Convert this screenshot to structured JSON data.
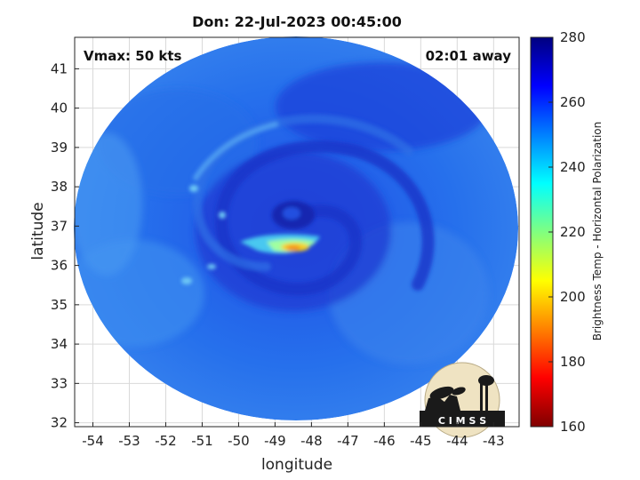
{
  "title": "Don: 22-Jul-2023 00:45:00",
  "vmax_label": "Vmax: 50 kts",
  "time_away_label": "02:01 away",
  "xlabel": "longitude",
  "ylabel": "latitude",
  "colorbar_label": "Brightness Temp - Horizontal Polarization",
  "logo_text": "C I M S S",
  "x_ticks": [
    "-54",
    "-53",
    "-52",
    "-51",
    "-50",
    "-49",
    "-48",
    "-47",
    "-46",
    "-45",
    "-44",
    "-43"
  ],
  "y_ticks": [
    "41",
    "40",
    "39",
    "38",
    "37",
    "36",
    "35",
    "34",
    "33",
    "32"
  ],
  "colorbar_ticks": [
    "280",
    "260",
    "240",
    "220",
    "200",
    "180",
    "160"
  ],
  "x_range": [
    -54.5,
    -42.3
  ],
  "y_range": [
    31.9,
    41.8
  ],
  "colorbar_range": [
    160,
    280
  ],
  "colormap_stops": [
    "#7f0000",
    "#ff0000",
    "#ff8000",
    "#ffff00",
    "#80ff80",
    "#00ffff",
    "#0080ff",
    "#0000ff",
    "#00007f"
  ],
  "grid": true
}
